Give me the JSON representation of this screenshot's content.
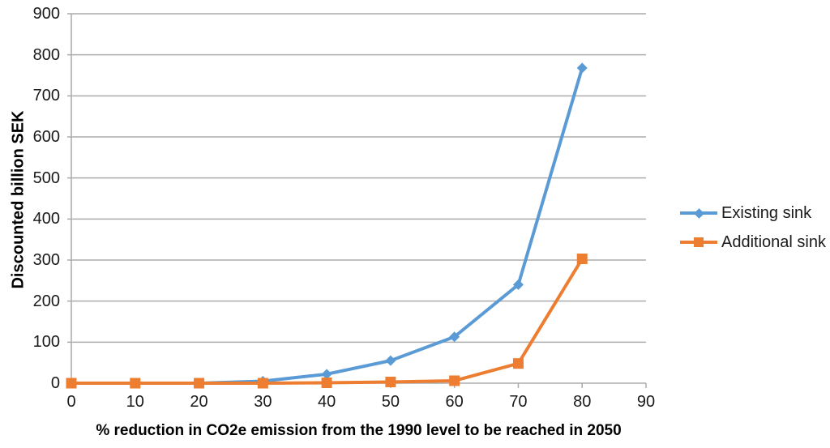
{
  "chart_data": {
    "type": "line",
    "title": "",
    "xlabel": "% reduction in CO2e emission from the 1990 level to be reached in 2050",
    "ylabel": "Discounted billion SEK",
    "xlim": [
      0,
      90
    ],
    "ylim": [
      0,
      900
    ],
    "x_ticks": [
      0,
      10,
      20,
      30,
      40,
      50,
      60,
      70,
      80,
      90
    ],
    "y_ticks": [
      0,
      100,
      200,
      300,
      400,
      500,
      600,
      700,
      800,
      900
    ],
    "grid": "horizontal",
    "legend_position": "right",
    "x": [
      0,
      10,
      20,
      30,
      40,
      50,
      60,
      70,
      80
    ],
    "series": [
      {
        "name": "Existing sink",
        "color": "#5B9BD5",
        "marker": "diamond",
        "values": [
          0,
          0,
          0,
          5,
          22,
          55,
          113,
          240,
          768
        ]
      },
      {
        "name": "Additional sink",
        "color": "#ED7D31",
        "marker": "square",
        "values": [
          0,
          0,
          0,
          0,
          1,
          3,
          6,
          48,
          303
        ]
      }
    ],
    "colors": {
      "axis": "#ABABAB",
      "gridline": "#ABABAB",
      "tick_text": "#1A1A1A"
    }
  }
}
